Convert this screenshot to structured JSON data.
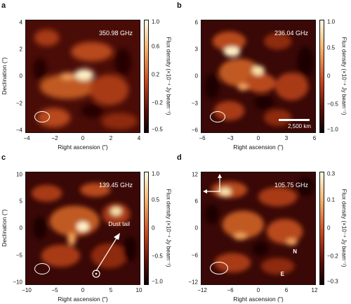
{
  "panels": [
    {
      "label": "a",
      "frequency": "350.98 GHz",
      "xlabel": "Right ascension (\")",
      "ylabel": "Declination (\")",
      "xticks": [
        "−4",
        "−2",
        "0",
        "2",
        "4"
      ],
      "yticks": [
        "4",
        "2",
        "0",
        "−2",
        "−4"
      ],
      "cbticks": [
        "1.0",
        "0.6",
        "0.2",
        "−0.2",
        "−0.5"
      ],
      "cblabel": "Flux density (×10⁻⁴ Jy beam⁻¹)",
      "colors": {
        "bg": "#3a0806",
        "mid": "#9c2a12",
        "hi": "#f6c27a",
        "peak": "#fffbe6"
      }
    },
    {
      "label": "b",
      "frequency": "236.04 GHz",
      "xlabel": "Right ascension (\")",
      "ylabel": "",
      "xticks": [
        "−6",
        "−3",
        "0",
        "3",
        "6"
      ],
      "yticks": [
        "6",
        "3",
        "0",
        "−3",
        "−6"
      ],
      "cbticks": [
        "1.0",
        "0.5",
        "0",
        "−0.5",
        "−1.0"
      ],
      "cblabel": "Flux density (×10⁻⁴ Jy beam⁻¹)",
      "scalebar": "2,500 km",
      "colors": {
        "bg": "#3a0806",
        "mid": "#9c2a12",
        "hi": "#f6c27a",
        "peak": "#fffbe6"
      }
    },
    {
      "label": "c",
      "frequency": "139.45 GHz",
      "xlabel": "Right ascension (\")",
      "ylabel": "Declination (\")",
      "xticks": [
        "−10",
        "−5",
        "0",
        "5",
        "10"
      ],
      "yticks": [
        "10",
        "5",
        "0",
        "−5",
        "−10"
      ],
      "cbticks": [
        "1.0",
        "0.5",
        "0",
        "−0.5",
        "−1.0"
      ],
      "cblabel": "Flux density (×10⁻⁴ Jy beam⁻¹)",
      "annotation": "Dust tail",
      "colors": {
        "bg": "#3a0806",
        "mid": "#9c2a12",
        "hi": "#f6c27a",
        "peak": "#fffbe6"
      }
    },
    {
      "label": "d",
      "frequency": "105.75 GHz",
      "xlabel": "Right ascension (\")",
      "ylabel": "",
      "xticks": [
        "−12",
        "−6",
        "0",
        "6",
        "12"
      ],
      "yticks": [
        "12",
        "6",
        "0",
        "−6",
        "−12"
      ],
      "cbticks": [
        "0.3",
        "0.1",
        "0",
        "−0.2",
        "−0.3"
      ],
      "cblabel": "Flux density (×10⁻⁴ Jy beam⁻¹)",
      "compass": {
        "north": "N",
        "east": "E"
      },
      "colors": {
        "bg": "#3a0806",
        "mid": "#9c2a12",
        "hi": "#f6c27a",
        "peak": "#fffbe6"
      }
    }
  ]
}
